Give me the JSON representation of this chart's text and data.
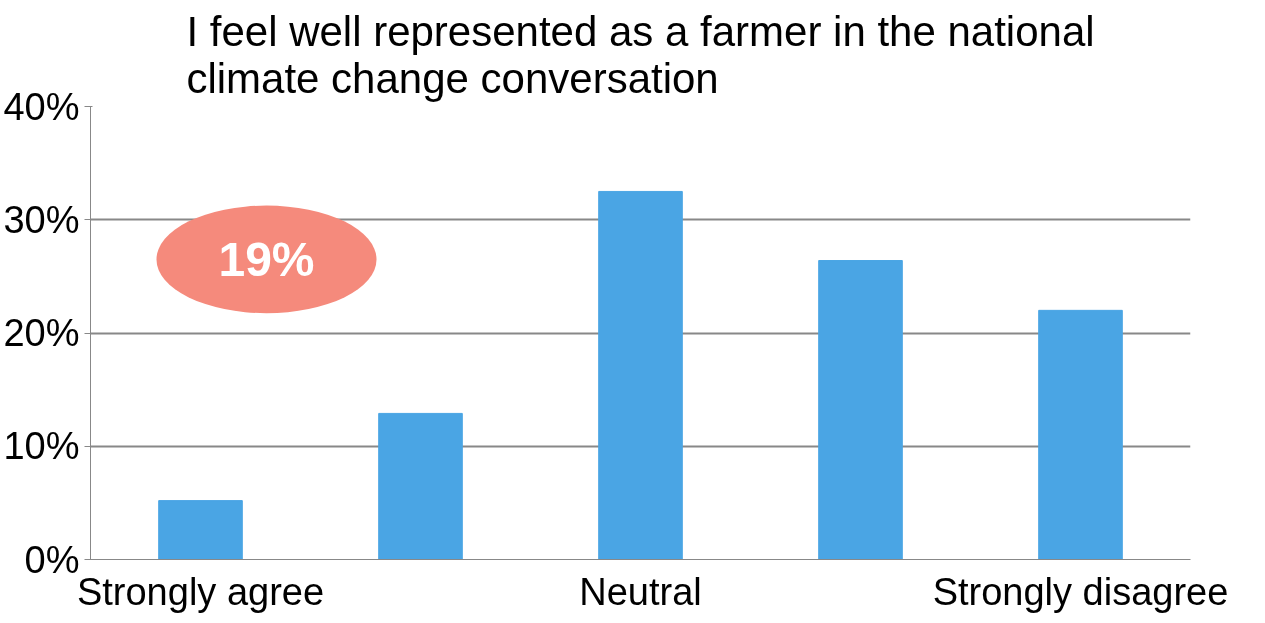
{
  "chart_data": {
    "type": "bar",
    "title": "I feel well represented as a farmer in the national climate change conversation",
    "categories": [
      "Strongly agree",
      null,
      "Neutral",
      null,
      "Strongly disagree"
    ],
    "values": [
      5.2,
      12.9,
      32.5,
      26.4,
      22.0
    ],
    "color": "#4aa5e4",
    "ylim": [
      0,
      40
    ],
    "yticks": [
      {
        "value": 0,
        "label": "0%"
      },
      {
        "value": 10,
        "label": "10%"
      },
      {
        "value": 20,
        "label": "20%"
      },
      {
        "value": 30,
        "label": "30%"
      },
      {
        "value": 40,
        "label": "40%"
      }
    ],
    "grid": "y",
    "annotations": [
      "19%"
    ]
  }
}
